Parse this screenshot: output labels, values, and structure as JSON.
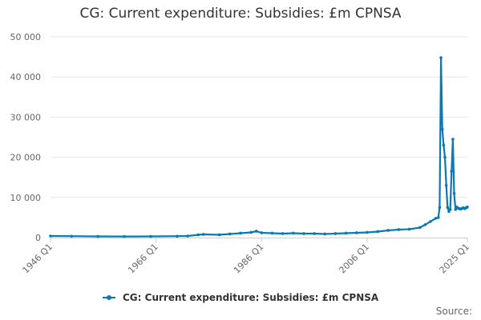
{
  "chart_data": {
    "type": "line",
    "title": "CG: Current expenditure: Subsidies: £m CPNSA",
    "xlabel": "",
    "ylabel": "",
    "ylim": [
      0,
      50000
    ],
    "y_ticks": [
      0,
      10000,
      20000,
      30000,
      40000,
      50000
    ],
    "y_tick_labels": [
      "0",
      "10 000",
      "20 000",
      "30 000",
      "40 000",
      "50 000"
    ],
    "x_ticks": [
      1946.0,
      1966.0,
      1986.0,
      2006.0,
      2025.0
    ],
    "x_tick_labels": [
      "1946 Q1",
      "1966 Q1",
      "1986 Q1",
      "2006 Q1",
      "2025 Q1"
    ],
    "grid": true,
    "legend_position": "bottom",
    "color": "#0b78b4",
    "series": [
      {
        "name": "CG: Current expenditure: Subsidies: £m CPNSA",
        "x": [
          1946.0,
          1950.0,
          1955.0,
          1960.0,
          1965.0,
          1970.0,
          1972.0,
          1974.0,
          1975.0,
          1978.0,
          1980.0,
          1982.0,
          1984.0,
          1985.0,
          1986.0,
          1988.0,
          1990.0,
          1992.0,
          1994.0,
          1996.0,
          1998.0,
          2000.0,
          2002.0,
          2004.0,
          2006.0,
          2008.0,
          2010.0,
          2012.0,
          2014.0,
          2016.0,
          2017.0,
          2018.0,
          2019.0,
          2019.5,
          2019.75,
          2020.0,
          2020.25,
          2020.5,
          2020.75,
          2021.0,
          2021.25,
          2021.5,
          2021.75,
          2022.0,
          2022.25,
          2022.5,
          2022.75,
          2023.0,
          2023.25,
          2023.5,
          2023.75,
          2024.0,
          2024.25,
          2024.5,
          2024.75,
          2025.0
        ],
        "values": [
          400,
          350,
          300,
          280,
          300,
          350,
          400,
          700,
          800,
          700,
          900,
          1100,
          1300,
          1600,
          1200,
          1100,
          1000,
          1100,
          1000,
          1000,
          900,
          1000,
          1100,
          1200,
          1300,
          1500,
          1800,
          2000,
          2100,
          2500,
          3200,
          4000,
          4800,
          5000,
          7500,
          44800,
          27000,
          23000,
          20000,
          13000,
          7500,
          6500,
          7000,
          16500,
          24500,
          11000,
          7000,
          7600,
          7300,
          7200,
          7100,
          7300,
          7400,
          7200,
          7400,
          7600
        ]
      }
    ]
  },
  "source_label": "Source:"
}
